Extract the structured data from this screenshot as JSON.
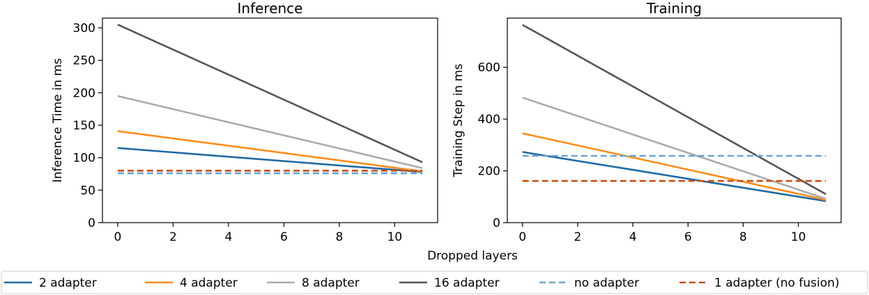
{
  "chart_data": {
    "type": "line",
    "xlabel": "Dropped layers",
    "panels": [
      {
        "title": "Inference",
        "ylabel": "Inference Time in ms",
        "xlim": [
          -0.55,
          11.55
        ],
        "ylim": [
          0,
          315
        ],
        "xticks": [
          0,
          2,
          4,
          6,
          8,
          10
        ],
        "yticks": [
          0,
          50,
          100,
          150,
          200,
          250,
          300
        ],
        "series": [
          {
            "name": "2 adapter",
            "x": [
              0,
              11
            ],
            "y": [
              115,
              78
            ]
          },
          {
            "name": "4 adapter",
            "x": [
              0,
              11
            ],
            "y": [
              141,
              79
            ]
          },
          {
            "name": "8 adapter",
            "x": [
              0,
              11
            ],
            "y": [
              195,
              84
            ]
          },
          {
            "name": "16 adapter",
            "x": [
              0,
              11
            ],
            "y": [
              305,
              93
            ]
          },
          {
            "name": "no adapter",
            "x": [
              0,
              11
            ],
            "y": [
              76,
              76
            ]
          },
          {
            "name": "1 adapter (no fusion)",
            "x": [
              0,
              11
            ],
            "y": [
              80,
              80
            ]
          }
        ]
      },
      {
        "title": "Training",
        "ylabel": "Training Step in ms",
        "xlim": [
          -0.55,
          11.55
        ],
        "ylim": [
          0,
          790
        ],
        "xticks": [
          0,
          2,
          4,
          6,
          8,
          10
        ],
        "yticks": [
          0,
          200,
          400,
          600
        ],
        "series": [
          {
            "name": "2 adapter",
            "x": [
              0,
              11
            ],
            "y": [
              273,
              83
            ]
          },
          {
            "name": "4 adapter",
            "x": [
              0,
              11
            ],
            "y": [
              345,
              88
            ]
          },
          {
            "name": "8 adapter",
            "x": [
              0,
              11
            ],
            "y": [
              483,
              92
            ]
          },
          {
            "name": "16 adapter",
            "x": [
              0,
              11
            ],
            "y": [
              764,
              110
            ]
          },
          {
            "name": "no adapter",
            "x": [
              0,
              11
            ],
            "y": [
              258,
              258
            ]
          },
          {
            "name": "1 adapter (no fusion)",
            "x": [
              0,
              11
            ],
            "y": [
              161,
              161
            ]
          }
        ]
      }
    ],
    "legend": {
      "placement": "bottom",
      "entries": [
        {
          "name": "2 adapter",
          "color": "#1f6aa5",
          "dash": "solid"
        },
        {
          "name": "4 adapter",
          "color": "#ff8c1a",
          "dash": "solid"
        },
        {
          "name": "8 adapter",
          "color": "#ababab",
          "dash": "solid"
        },
        {
          "name": "16 adapter",
          "color": "#555555",
          "dash": "solid"
        },
        {
          "name": "no adapter",
          "color": "#6aa3d5",
          "dash": "dashed"
        },
        {
          "name": "1 adapter (no fusion)",
          "color": "#cc4e0c",
          "dash": "dashed"
        }
      ]
    },
    "grid": false
  }
}
